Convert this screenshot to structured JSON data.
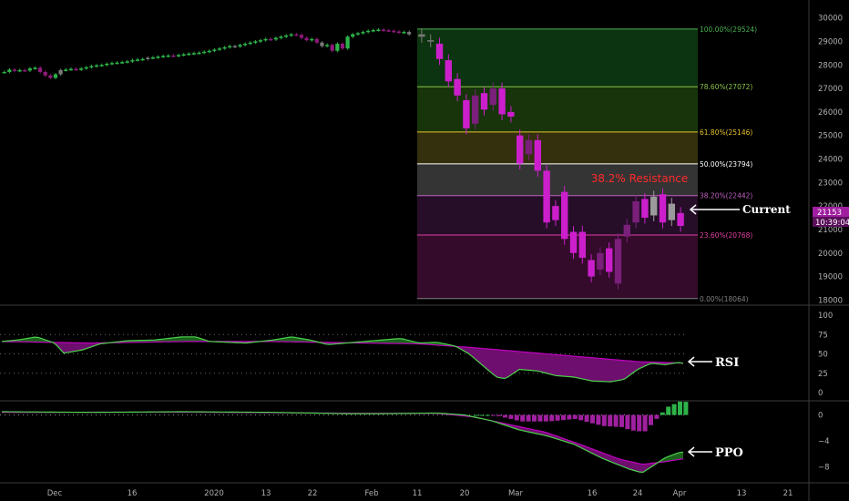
{
  "chart_data": {
    "type": "candlestick",
    "main": {
      "y_ticks": [
        18000,
        19000,
        20000,
        21000,
        22000,
        23000,
        24000,
        25000,
        26000,
        27000,
        28000,
        29000,
        30000
      ],
      "ylim": [
        17900,
        30450
      ],
      "x_ticks": [
        "Dec",
        "16",
        "2020",
        "13",
        "22",
        "Feb",
        "11",
        "20",
        "Mar",
        "16",
        "24",
        "Apr",
        "13",
        "21"
      ],
      "price_badge": "21153",
      "time_badge": "10:39:04",
      "fib_levels": [
        {
          "label": "100.00%(29524)",
          "value": 29524,
          "color": "#4caf50"
        },
        {
          "label": "78.60%(27072)",
          "value": 27072,
          "color": "#8bc34a"
        },
        {
          "label": "61.80%(25146)",
          "value": 25146,
          "color": "#e6c229"
        },
        {
          "label": "50.00%(23794)",
          "value": 23794,
          "color": "#ffffff"
        },
        {
          "label": "38.20%(22442)",
          "value": 22442,
          "color": "#c060c0"
        },
        {
          "label": "23.60%(20768)",
          "value": 20768,
          "color": "#e040a0"
        },
        {
          "label": "0.00%(18064)",
          "value": 18064,
          "color": "#808080"
        }
      ],
      "annotations": {
        "resistance": "38.2% Resistance",
        "current": "Current"
      },
      "candles_pre": [
        27700,
        27800,
        27750,
        27780,
        27760,
        27850,
        27880,
        27700,
        27550,
        27450,
        27600,
        27780,
        27800,
        27830,
        27800,
        27850,
        27900,
        27950,
        27980,
        28000,
        28050,
        28080,
        28100,
        28120,
        28150,
        28200,
        28230,
        28250,
        28300,
        28320,
        28350,
        28380,
        28400,
        28380,
        28420,
        28450,
        28480,
        28500,
        28520,
        28560,
        28600,
        28650,
        28700,
        28750,
        28800,
        28780,
        28850,
        28900,
        28950,
        29000,
        29050,
        29100,
        29080,
        29150,
        29200,
        29250,
        29300,
        29280,
        29150,
        29050,
        29100,
        28950,
        28800,
        28850,
        28600,
        28900,
        28700,
        29200,
        29300,
        29350,
        29400,
        29450,
        29480,
        29500,
        29470,
        29450,
        29420,
        29380,
        29400,
        29300
      ],
      "crash": [
        {
          "o": 29300,
          "c": 29200
        },
        {
          "o": 29050,
          "c": 29000
        },
        {
          "o": 28900,
          "c": 28250
        },
        {
          "o": 28200,
          "c": 27300
        },
        {
          "o": 27400,
          "c": 26700
        },
        {
          "o": 26500,
          "c": 25300
        },
        {
          "o": 25500,
          "c": 26700
        },
        {
          "o": 26800,
          "c": 26100
        },
        {
          "o": 26300,
          "c": 27000
        },
        {
          "o": 27000,
          "c": 25900
        },
        {
          "o": 26000,
          "c": 25800
        },
        {
          "o": 25000,
          "c": 23800
        },
        {
          "o": 24200,
          "c": 24800
        },
        {
          "o": 24800,
          "c": 23500
        },
        {
          "o": 23500,
          "c": 21300
        },
        {
          "o": 22000,
          "c": 21400
        },
        {
          "o": 22600,
          "c": 20600
        },
        {
          "o": 20900,
          "c": 20000
        },
        {
          "o": 20900,
          "c": 19800
        },
        {
          "o": 19700,
          "c": 19000
        },
        {
          "o": 19300,
          "c": 20000
        },
        {
          "o": 20200,
          "c": 19200
        },
        {
          "o": 18700,
          "c": 20600
        },
        {
          "o": 20700,
          "c": 21200
        },
        {
          "o": 21300,
          "c": 22200
        },
        {
          "o": 22300,
          "c": 21500
        },
        {
          "o": 21600,
          "c": 22400
        },
        {
          "o": 22500,
          "c": 21300
        },
        {
          "o": 21400,
          "c": 22100
        },
        {
          "o": 21700,
          "c": 21153
        }
      ]
    },
    "rsi": {
      "label": "RSI",
      "y_ticks": [
        0,
        25,
        50,
        75,
        100
      ]
    },
    "ppo": {
      "label": "PPO",
      "y_ticks": [
        0,
        -4,
        -8
      ]
    }
  },
  "colors": {
    "up": "#2db34a",
    "down": "#cc1fcc",
    "down_dark": "#8e1a7a",
    "gray": "#7a7a7a",
    "resistance_text": "#ff2a2a",
    "signal": "#c000c0",
    "indicator": "#4cd34c"
  }
}
